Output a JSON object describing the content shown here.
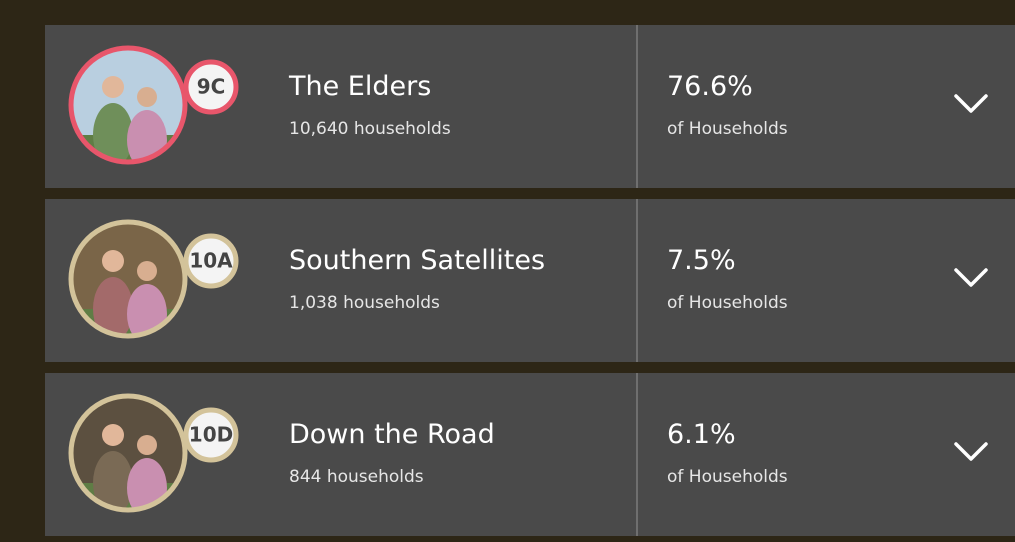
{
  "segments": [
    {
      "code": "9C",
      "name": "The Elders",
      "households": "10,640 households",
      "percent": "76.6%",
      "percent_caption": "of Households",
      "ring_color": "#e8566b"
    },
    {
      "code": "10A",
      "name": "Southern Satellites",
      "households": "1,038 households",
      "percent": "7.5%",
      "percent_caption": "of Households",
      "ring_color": "#d3c39a"
    },
    {
      "code": "10D",
      "name": "Down the Road",
      "households": "844 households",
      "percent": "6.1%",
      "percent_caption": "of Households",
      "ring_color": "#d3c39a"
    }
  ]
}
